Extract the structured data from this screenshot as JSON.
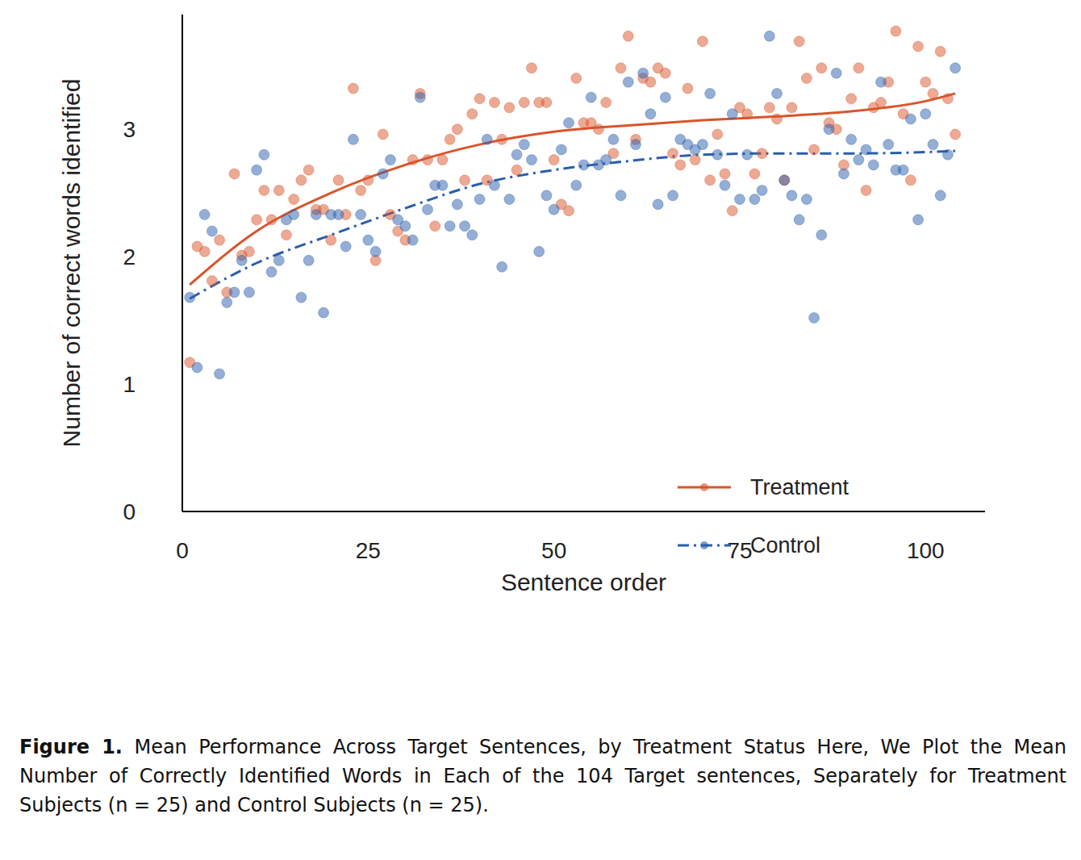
{
  "chart_data": {
    "type": "scatter",
    "x_label": "Sentence order",
    "y_label": "Number of correct words identified",
    "caption": {
      "label": "Figure 1.",
      "text": "Mean Performance Across Target Sentences, by Treatment Status Here, We Plot the Mean Number of Correctly Identified Words in Each of the 104 Target sentences, Separately for Treatment Subjects (n = 25) and Control Subjects (n = 25)."
    },
    "xlim": [
      0,
      108
    ],
    "xticks": [
      0,
      25,
      50,
      75,
      100
    ],
    "ylim": [
      0,
      3.9
    ],
    "yticks": [
      0,
      1,
      2,
      3
    ],
    "grid": false,
    "legend": "lower right",
    "x": [
      1,
      2,
      3,
      4,
      5,
      6,
      7,
      8,
      9,
      10,
      11,
      12,
      13,
      14,
      15,
      16,
      17,
      18,
      19,
      20,
      21,
      22,
      23,
      24,
      25,
      26,
      27,
      28,
      29,
      30,
      31,
      32,
      33,
      34,
      35,
      36,
      37,
      38,
      39,
      40,
      41,
      42,
      43,
      44,
      45,
      46,
      47,
      48,
      49,
      50,
      51,
      52,
      53,
      54,
      55,
      56,
      57,
      58,
      59,
      60,
      61,
      62,
      63,
      64,
      65,
      66,
      67,
      68,
      69,
      70,
      71,
      72,
      73,
      74,
      75,
      76,
      77,
      78,
      79,
      80,
      81,
      82,
      83,
      84,
      85,
      86,
      87,
      88,
      89,
      90,
      91,
      92,
      93,
      94,
      95,
      96,
      97,
      98,
      99,
      100,
      101,
      102,
      103,
      104
    ],
    "series": [
      {
        "name": "Treatment",
        "color": "#d9542a",
        "marker": "circle",
        "line_style": "solid",
        "values": [
          1.17,
          2.08,
          2.04,
          1.81,
          2.13,
          1.72,
          2.65,
          2.01,
          2.04,
          2.29,
          2.52,
          2.29,
          2.52,
          2.17,
          2.45,
          2.6,
          2.68,
          2.37,
          2.37,
          2.13,
          2.6,
          2.33,
          3.32,
          2.52,
          2.6,
          1.97,
          2.96,
          2.33,
          2.2,
          2.13,
          2.76,
          3.28,
          2.76,
          2.24,
          2.76,
          2.92,
          3.0,
          2.6,
          3.12,
          3.24,
          2.6,
          3.21,
          2.92,
          3.17,
          2.68,
          3.21,
          3.48,
          3.21,
          3.21,
          2.76,
          2.41,
          2.36,
          3.4,
          3.05,
          3.05,
          3.0,
          3.21,
          2.81,
          3.48,
          3.73,
          2.92,
          3.4,
          3.37,
          3.48,
          3.44,
          2.81,
          2.72,
          3.32,
          2.76,
          3.69,
          2.6,
          2.96,
          2.65,
          2.36,
          3.17,
          3.12,
          2.65,
          2.81,
          3.17,
          3.08,
          2.6,
          3.17,
          3.69,
          3.4,
          2.84,
          3.48,
          3.05,
          3.0,
          2.72,
          3.24,
          3.48,
          2.52,
          3.17,
          3.21,
          3.37,
          3.77,
          3.12,
          2.6,
          3.65,
          3.37,
          3.28,
          3.61,
          3.24,
          2.96
        ],
        "trend": {
          "x": [
            1,
            10,
            20,
            30,
            40,
            50,
            60,
            70,
            80,
            90,
            100,
            104
          ],
          "values": [
            1.78,
            2.2,
            2.5,
            2.72,
            2.88,
            2.98,
            3.03,
            3.07,
            3.1,
            3.14,
            3.22,
            3.28
          ]
        }
      },
      {
        "name": "Control",
        "color": "#2a5eab",
        "marker": "circle",
        "line_style": "dashdot",
        "values": [
          1.68,
          1.13,
          2.33,
          2.2,
          1.08,
          1.64,
          1.72,
          1.97,
          1.72,
          2.68,
          2.8,
          1.88,
          1.97,
          2.29,
          2.33,
          1.68,
          1.97,
          2.33,
          1.56,
          2.33,
          2.33,
          2.08,
          2.92,
          2.33,
          2.13,
          2.04,
          2.65,
          2.76,
          2.29,
          2.24,
          2.13,
          3.25,
          2.37,
          2.56,
          2.56,
          2.24,
          2.41,
          2.24,
          2.17,
          2.45,
          2.92,
          2.56,
          1.92,
          2.45,
          2.8,
          2.88,
          2.76,
          2.04,
          2.48,
          2.37,
          2.84,
          3.05,
          2.56,
          2.72,
          3.25,
          2.72,
          2.76,
          2.92,
          2.48,
          3.37,
          2.88,
          3.44,
          3.12,
          2.41,
          3.25,
          2.48,
          2.92,
          2.88,
          2.84,
          2.88,
          3.28,
          2.8,
          2.56,
          3.12,
          2.45,
          2.8,
          2.45,
          2.52,
          3.73,
          3.28,
          2.6,
          2.48,
          2.29,
          2.45,
          1.52,
          2.17,
          3.0,
          3.44,
          2.65,
          2.92,
          2.76,
          2.84,
          2.72,
          3.37,
          2.88,
          2.68,
          2.68,
          3.08,
          2.29,
          3.12,
          2.88,
          2.48,
          2.8,
          3.48
        ],
        "trend": {
          "x": [
            1,
            10,
            20,
            30,
            40,
            50,
            60,
            70,
            80,
            90,
            100,
            104
          ],
          "values": [
            1.67,
            1.95,
            2.17,
            2.38,
            2.57,
            2.68,
            2.75,
            2.8,
            2.81,
            2.81,
            2.82,
            2.83
          ]
        }
      }
    ]
  }
}
